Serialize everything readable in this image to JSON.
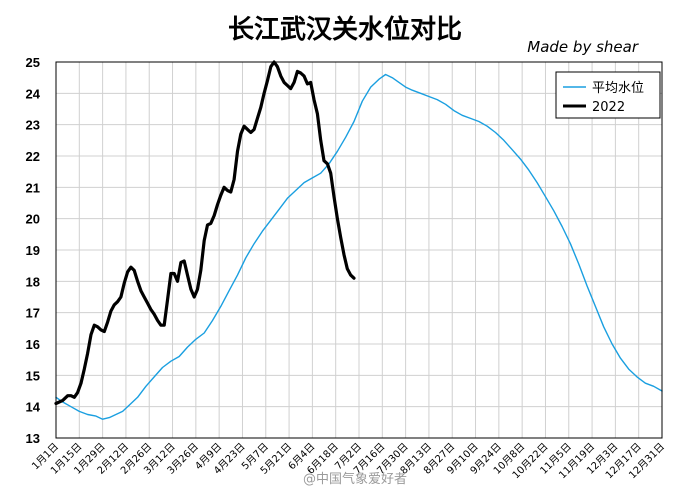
{
  "chart_data": {
    "type": "line",
    "title": "长江武汉关水位对比",
    "byline": "Made by shear",
    "watermark": "@中国气象爱好者",
    "ylim": [
      13,
      25
    ],
    "yticks": [
      13,
      14,
      15,
      16,
      17,
      18,
      19,
      20,
      21,
      22,
      23,
      24,
      25
    ],
    "grid": true,
    "legend_position": "top-right",
    "xticks": [
      {
        "label": "1月1日",
        "day": 1
      },
      {
        "label": "1月15日",
        "day": 15
      },
      {
        "label": "1月29日",
        "day": 29
      },
      {
        "label": "2月12日",
        "day": 43
      },
      {
        "label": "2月26日",
        "day": 57
      },
      {
        "label": "3月12日",
        "day": 71
      },
      {
        "label": "3月26日",
        "day": 85
      },
      {
        "label": "4月9日",
        "day": 99
      },
      {
        "label": "4月23日",
        "day": 113
      },
      {
        "label": "5月7日",
        "day": 127
      },
      {
        "label": "5月21日",
        "day": 141
      },
      {
        "label": "6月4日",
        "day": 155
      },
      {
        "label": "6月18日",
        "day": 169
      },
      {
        "label": "7月2日",
        "day": 183
      },
      {
        "label": "7月16日",
        "day": 197
      },
      {
        "label": "7月30日",
        "day": 211
      },
      {
        "label": "8月13日",
        "day": 225
      },
      {
        "label": "8月27日",
        "day": 239
      },
      {
        "label": "9月10日",
        "day": 253
      },
      {
        "label": "9月24日",
        "day": 267
      },
      {
        "label": "10月8日",
        "day": 281
      },
      {
        "label": "10月22日",
        "day": 295
      },
      {
        "label": "11月5日",
        "day": 309
      },
      {
        "label": "11月19日",
        "day": 323
      },
      {
        "label": "12月3日",
        "day": 337
      },
      {
        "label": "12月17日",
        "day": 351
      },
      {
        "label": "12月31日",
        "day": 365
      }
    ],
    "series": [
      {
        "name": "平均水位",
        "color": "#1a9fe0",
        "points": [
          [
            1,
            14.3
          ],
          [
            5,
            14.15
          ],
          [
            10,
            14.0
          ],
          [
            15,
            13.85
          ],
          [
            20,
            13.75
          ],
          [
            25,
            13.7
          ],
          [
            29,
            13.6
          ],
          [
            33,
            13.65
          ],
          [
            37,
            13.75
          ],
          [
            41,
            13.85
          ],
          [
            45,
            14.05
          ],
          [
            50,
            14.3
          ],
          [
            55,
            14.65
          ],
          [
            60,
            14.95
          ],
          [
            65,
            15.25
          ],
          [
            70,
            15.45
          ],
          [
            75,
            15.6
          ],
          [
            80,
            15.9
          ],
          [
            85,
            16.15
          ],
          [
            90,
            16.35
          ],
          [
            95,
            16.75
          ],
          [
            100,
            17.2
          ],
          [
            105,
            17.7
          ],
          [
            110,
            18.2
          ],
          [
            115,
            18.75
          ],
          [
            120,
            19.2
          ],
          [
            125,
            19.6
          ],
          [
            130,
            19.95
          ],
          [
            135,
            20.3
          ],
          [
            140,
            20.65
          ],
          [
            145,
            20.9
          ],
          [
            150,
            21.15
          ],
          [
            155,
            21.3
          ],
          [
            160,
            21.45
          ],
          [
            165,
            21.75
          ],
          [
            170,
            22.15
          ],
          [
            175,
            22.6
          ],
          [
            180,
            23.1
          ],
          [
            185,
            23.75
          ],
          [
            190,
            24.2
          ],
          [
            195,
            24.45
          ],
          [
            199,
            24.6
          ],
          [
            203,
            24.5
          ],
          [
            207,
            24.35
          ],
          [
            211,
            24.2
          ],
          [
            215,
            24.1
          ],
          [
            220,
            24.0
          ],
          [
            225,
            23.9
          ],
          [
            230,
            23.8
          ],
          [
            235,
            23.65
          ],
          [
            240,
            23.45
          ],
          [
            245,
            23.3
          ],
          [
            250,
            23.2
          ],
          [
            255,
            23.1
          ],
          [
            260,
            22.95
          ],
          [
            265,
            22.75
          ],
          [
            270,
            22.5
          ],
          [
            275,
            22.2
          ],
          [
            280,
            21.9
          ],
          [
            285,
            21.55
          ],
          [
            290,
            21.15
          ],
          [
            295,
            20.7
          ],
          [
            300,
            20.25
          ],
          [
            305,
            19.75
          ],
          [
            310,
            19.2
          ],
          [
            315,
            18.55
          ],
          [
            320,
            17.85
          ],
          [
            325,
            17.2
          ],
          [
            330,
            16.55
          ],
          [
            335,
            16.0
          ],
          [
            340,
            15.55
          ],
          [
            345,
            15.2
          ],
          [
            350,
            14.95
          ],
          [
            355,
            14.75
          ],
          [
            360,
            14.65
          ],
          [
            365,
            14.5
          ]
        ]
      },
      {
        "name": "2022",
        "color": "#000000",
        "points": [
          [
            1,
            14.1
          ],
          [
            5,
            14.2
          ],
          [
            8,
            14.35
          ],
          [
            10,
            14.35
          ],
          [
            12,
            14.3
          ],
          [
            14,
            14.45
          ],
          [
            16,
            14.75
          ],
          [
            18,
            15.2
          ],
          [
            20,
            15.7
          ],
          [
            22,
            16.3
          ],
          [
            24,
            16.6
          ],
          [
            26,
            16.55
          ],
          [
            28,
            16.45
          ],
          [
            30,
            16.4
          ],
          [
            32,
            16.7
          ],
          [
            34,
            17.05
          ],
          [
            36,
            17.25
          ],
          [
            38,
            17.35
          ],
          [
            40,
            17.5
          ],
          [
            42,
            17.95
          ],
          [
            44,
            18.3
          ],
          [
            46,
            18.45
          ],
          [
            48,
            18.35
          ],
          [
            50,
            18.0
          ],
          [
            52,
            17.7
          ],
          [
            54,
            17.5
          ],
          [
            56,
            17.3
          ],
          [
            58,
            17.1
          ],
          [
            60,
            16.95
          ],
          [
            62,
            16.75
          ],
          [
            64,
            16.6
          ],
          [
            66,
            16.6
          ],
          [
            68,
            17.4
          ],
          [
            70,
            18.25
          ],
          [
            72,
            18.25
          ],
          [
            74,
            18.0
          ],
          [
            76,
            18.6
          ],
          [
            78,
            18.65
          ],
          [
            80,
            18.2
          ],
          [
            82,
            17.75
          ],
          [
            84,
            17.5
          ],
          [
            86,
            17.75
          ],
          [
            88,
            18.35
          ],
          [
            90,
            19.3
          ],
          [
            92,
            19.8
          ],
          [
            94,
            19.85
          ],
          [
            96,
            20.1
          ],
          [
            98,
            20.45
          ],
          [
            100,
            20.75
          ],
          [
            102,
            21.0
          ],
          [
            104,
            20.9
          ],
          [
            106,
            20.85
          ],
          [
            108,
            21.25
          ],
          [
            110,
            22.15
          ],
          [
            112,
            22.7
          ],
          [
            114,
            22.95
          ],
          [
            116,
            22.85
          ],
          [
            118,
            22.75
          ],
          [
            120,
            22.85
          ],
          [
            122,
            23.2
          ],
          [
            124,
            23.55
          ],
          [
            126,
            24.0
          ],
          [
            128,
            24.4
          ],
          [
            130,
            24.85
          ],
          [
            132,
            25.0
          ],
          [
            134,
            24.85
          ],
          [
            136,
            24.55
          ],
          [
            138,
            24.35
          ],
          [
            140,
            24.25
          ],
          [
            142,
            24.15
          ],
          [
            144,
            24.35
          ],
          [
            146,
            24.7
          ],
          [
            148,
            24.65
          ],
          [
            150,
            24.55
          ],
          [
            152,
            24.3
          ],
          [
            154,
            24.35
          ],
          [
            156,
            23.8
          ],
          [
            158,
            23.35
          ],
          [
            160,
            22.5
          ],
          [
            162,
            21.85
          ],
          [
            164,
            21.75
          ],
          [
            166,
            21.45
          ],
          [
            168,
            20.7
          ],
          [
            170,
            20.0
          ],
          [
            172,
            19.4
          ],
          [
            174,
            18.85
          ],
          [
            176,
            18.4
          ],
          [
            178,
            18.2
          ],
          [
            180,
            18.1
          ]
        ]
      }
    ]
  }
}
